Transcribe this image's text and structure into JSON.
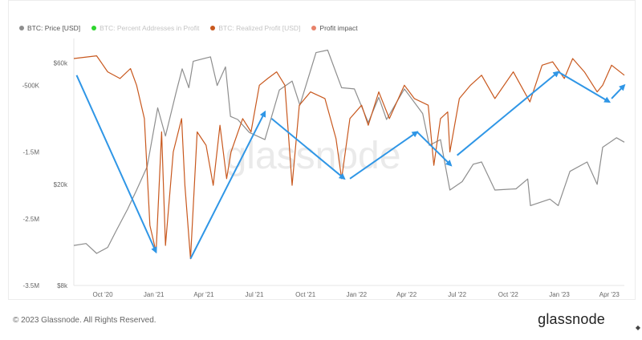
{
  "legend": {
    "items": [
      {
        "label": "BTC: Price [USD]",
        "color": "#8e8e8e",
        "muted": false
      },
      {
        "label": "BTC: Percent Addresses in Profit",
        "color": "#2ed52e",
        "muted": true
      },
      {
        "label": "BTC: Realized Profit [USD]",
        "color": "#c8581e",
        "muted": true
      },
      {
        "label": "Profit impact",
        "color": "#e8826a",
        "muted": false
      }
    ]
  },
  "watermark": "glassnode",
  "footer": {
    "copyright": "© 2023 Glassnode. All Rights Reserved.",
    "brand": "glassnode"
  },
  "chart_data": {
    "type": "line",
    "x_tick_labels": [
      "Oct '20",
      "Jan '21",
      "Apr '21",
      "Jul '21",
      "Oct '21",
      "Jan '22",
      "Apr '22",
      "Jul '22",
      "Oct '22",
      "Jan '23",
      "Apr '23"
    ],
    "x_tick_dates": [
      "2020-10-01",
      "2021-01-01",
      "2021-04-01",
      "2021-07-01",
      "2021-10-01",
      "2022-01-01",
      "2022-04-01",
      "2022-07-01",
      "2022-10-01",
      "2023-01-01",
      "2023-04-01"
    ],
    "xlim": [
      "2020-08-10",
      "2023-04-28"
    ],
    "left_axis": {
      "tick_labels": [
        "-500K",
        "-1.5M",
        "-2.5M",
        "-3.5M"
      ],
      "ticks": [
        -500000,
        -1500000,
        -2500000,
        -3500000
      ],
      "ylim": [
        -3500000,
        200000
      ]
    },
    "right_axis": {
      "tick_labels": [
        "$60k",
        "$20k",
        "$8k"
      ],
      "ticks": [
        60000,
        20000,
        8000
      ],
      "scale": "log",
      "ylim": [
        8000,
        75000
      ]
    },
    "series": [
      {
        "name": "BTC: Price [USD]",
        "axis": "right",
        "color": "#8e8e8e",
        "points": [
          [
            "2020-08-10",
            11500
          ],
          [
            "2020-09-01",
            11700
          ],
          [
            "2020-09-20",
            10700
          ],
          [
            "2020-10-10",
            11300
          ],
          [
            "2020-10-25",
            13100
          ],
          [
            "2020-11-15",
            16000
          ],
          [
            "2020-12-01",
            19000
          ],
          [
            "2020-12-20",
            23500
          ],
          [
            "2021-01-08",
            40000
          ],
          [
            "2021-01-22",
            31000
          ],
          [
            "2021-02-10",
            46000
          ],
          [
            "2021-02-21",
            57000
          ],
          [
            "2021-03-05",
            48000
          ],
          [
            "2021-03-13",
            61000
          ],
          [
            "2021-04-13",
            63500
          ],
          [
            "2021-04-25",
            49000
          ],
          [
            "2021-05-10",
            58000
          ],
          [
            "2021-05-19",
            37000
          ],
          [
            "2021-06-01",
            36000
          ],
          [
            "2021-06-22",
            32000
          ],
          [
            "2021-07-20",
            30000
          ],
          [
            "2021-08-15",
            47000
          ],
          [
            "2021-09-07",
            51000
          ],
          [
            "2021-09-21",
            41000
          ],
          [
            "2021-10-20",
            66000
          ],
          [
            "2021-11-10",
            67500
          ],
          [
            "2021-12-05",
            48000
          ],
          [
            "2021-12-28",
            47500
          ],
          [
            "2022-01-22",
            35000
          ],
          [
            "2022-02-10",
            44000
          ],
          [
            "2022-02-24",
            36000
          ],
          [
            "2022-03-28",
            47500
          ],
          [
            "2022-04-30",
            38000
          ],
          [
            "2022-05-12",
            28500
          ],
          [
            "2022-06-01",
            30000
          ],
          [
            "2022-06-18",
            19000
          ],
          [
            "2022-07-10",
            20500
          ],
          [
            "2022-07-30",
            24000
          ],
          [
            "2022-08-14",
            24500
          ],
          [
            "2022-09-07",
            19000
          ],
          [
            "2022-10-15",
            19200
          ],
          [
            "2022-11-05",
            21000
          ],
          [
            "2022-11-10",
            16500
          ],
          [
            "2022-12-15",
            17500
          ],
          [
            "2022-12-30",
            16500
          ],
          [
            "2023-01-20",
            22500
          ],
          [
            "2023-02-20",
            24500
          ],
          [
            "2023-03-10",
            20000
          ],
          [
            "2023-03-20",
            28000
          ],
          [
            "2023-04-14",
            30500
          ],
          [
            "2023-04-28",
            29300
          ]
        ]
      },
      {
        "name": "Profit impact",
        "axis": "left",
        "color": "#c8581e",
        "points": [
          [
            "2020-08-10",
            -100000
          ],
          [
            "2020-09-20",
            -60000
          ],
          [
            "2020-10-10",
            -300000
          ],
          [
            "2020-11-01",
            -400000
          ],
          [
            "2020-11-20",
            -250000
          ],
          [
            "2020-12-01",
            -500000
          ],
          [
            "2020-12-15",
            -1000000
          ],
          [
            "2020-12-25",
            -2600000
          ],
          [
            "2021-01-05",
            -3000000
          ],
          [
            "2021-01-15",
            -1200000
          ],
          [
            "2021-01-22",
            -2900000
          ],
          [
            "2021-02-05",
            -1500000
          ],
          [
            "2021-02-20",
            -1000000
          ],
          [
            "2021-02-26",
            -2000000
          ],
          [
            "2021-03-08",
            -3100000
          ],
          [
            "2021-03-20",
            -1200000
          ],
          [
            "2021-04-05",
            -1400000
          ],
          [
            "2021-04-18",
            -2000000
          ],
          [
            "2021-04-30",
            -1100000
          ],
          [
            "2021-05-12",
            -1900000
          ],
          [
            "2021-05-20",
            -1500000
          ],
          [
            "2021-06-10",
            -1000000
          ],
          [
            "2021-06-25",
            -1200000
          ],
          [
            "2021-07-10",
            -500000
          ],
          [
            "2021-07-25",
            -400000
          ],
          [
            "2021-08-10",
            -300000
          ],
          [
            "2021-08-25",
            -500000
          ],
          [
            "2021-09-07",
            -2000000
          ],
          [
            "2021-09-20",
            -800000
          ],
          [
            "2021-10-10",
            -600000
          ],
          [
            "2021-11-05",
            -700000
          ],
          [
            "2021-11-25",
            -1300000
          ],
          [
            "2021-12-05",
            -1900000
          ],
          [
            "2021-12-20",
            -1000000
          ],
          [
            "2022-01-10",
            -800000
          ],
          [
            "2022-01-22",
            -1100000
          ],
          [
            "2022-02-10",
            -600000
          ],
          [
            "2022-03-01",
            -1000000
          ],
          [
            "2022-03-28",
            -500000
          ],
          [
            "2022-04-15",
            -700000
          ],
          [
            "2022-05-10",
            -800000
          ],
          [
            "2022-05-20",
            -1700000
          ],
          [
            "2022-06-01",
            -1000000
          ],
          [
            "2022-06-14",
            -900000
          ],
          [
            "2022-06-18",
            -1500000
          ],
          [
            "2022-07-05",
            -700000
          ],
          [
            "2022-07-25",
            -500000
          ],
          [
            "2022-08-14",
            -350000
          ],
          [
            "2022-09-07",
            -700000
          ],
          [
            "2022-10-10",
            -300000
          ],
          [
            "2022-11-09",
            -750000
          ],
          [
            "2022-12-01",
            -200000
          ],
          [
            "2022-12-20",
            -150000
          ],
          [
            "2023-01-10",
            -400000
          ],
          [
            "2023-01-25",
            -100000
          ],
          [
            "2023-02-15",
            -300000
          ],
          [
            "2023-03-10",
            -600000
          ],
          [
            "2023-03-20",
            -500000
          ],
          [
            "2023-04-05",
            -200000
          ],
          [
            "2023-04-28",
            -350000
          ]
        ]
      }
    ],
    "annotations": [
      {
        "type": "arrow",
        "from": [
          "2020-08-15",
          -350000
        ],
        "to": [
          "2021-01-05",
          -3000000
        ]
      },
      {
        "type": "arrow",
        "from": [
          "2021-03-08",
          -3100000
        ],
        "to": [
          "2021-07-20",
          -900000
        ]
      },
      {
        "type": "arrow",
        "from": [
          "2021-08-01",
          -1000000
        ],
        "to": [
          "2021-12-10",
          -1900000
        ]
      },
      {
        "type": "arrow",
        "from": [
          "2021-12-20",
          -1900000
        ],
        "to": [
          "2022-04-20",
          -1200000
        ]
      },
      {
        "type": "arrow",
        "from": [
          "2022-04-20",
          -1200000
        ],
        "to": [
          "2022-06-20",
          -1700000
        ]
      },
      {
        "type": "arrow",
        "from": [
          "2022-07-01",
          -1550000
        ],
        "to": [
          "2022-12-30",
          -300000
        ]
      },
      {
        "type": "arrow",
        "from": [
          "2022-12-30",
          -300000
        ],
        "to": [
          "2023-04-01",
          -750000
        ]
      },
      {
        "type": "arrow",
        "from": [
          "2023-04-05",
          -700000
        ],
        "to": [
          "2023-04-28",
          -500000
        ]
      }
    ]
  }
}
